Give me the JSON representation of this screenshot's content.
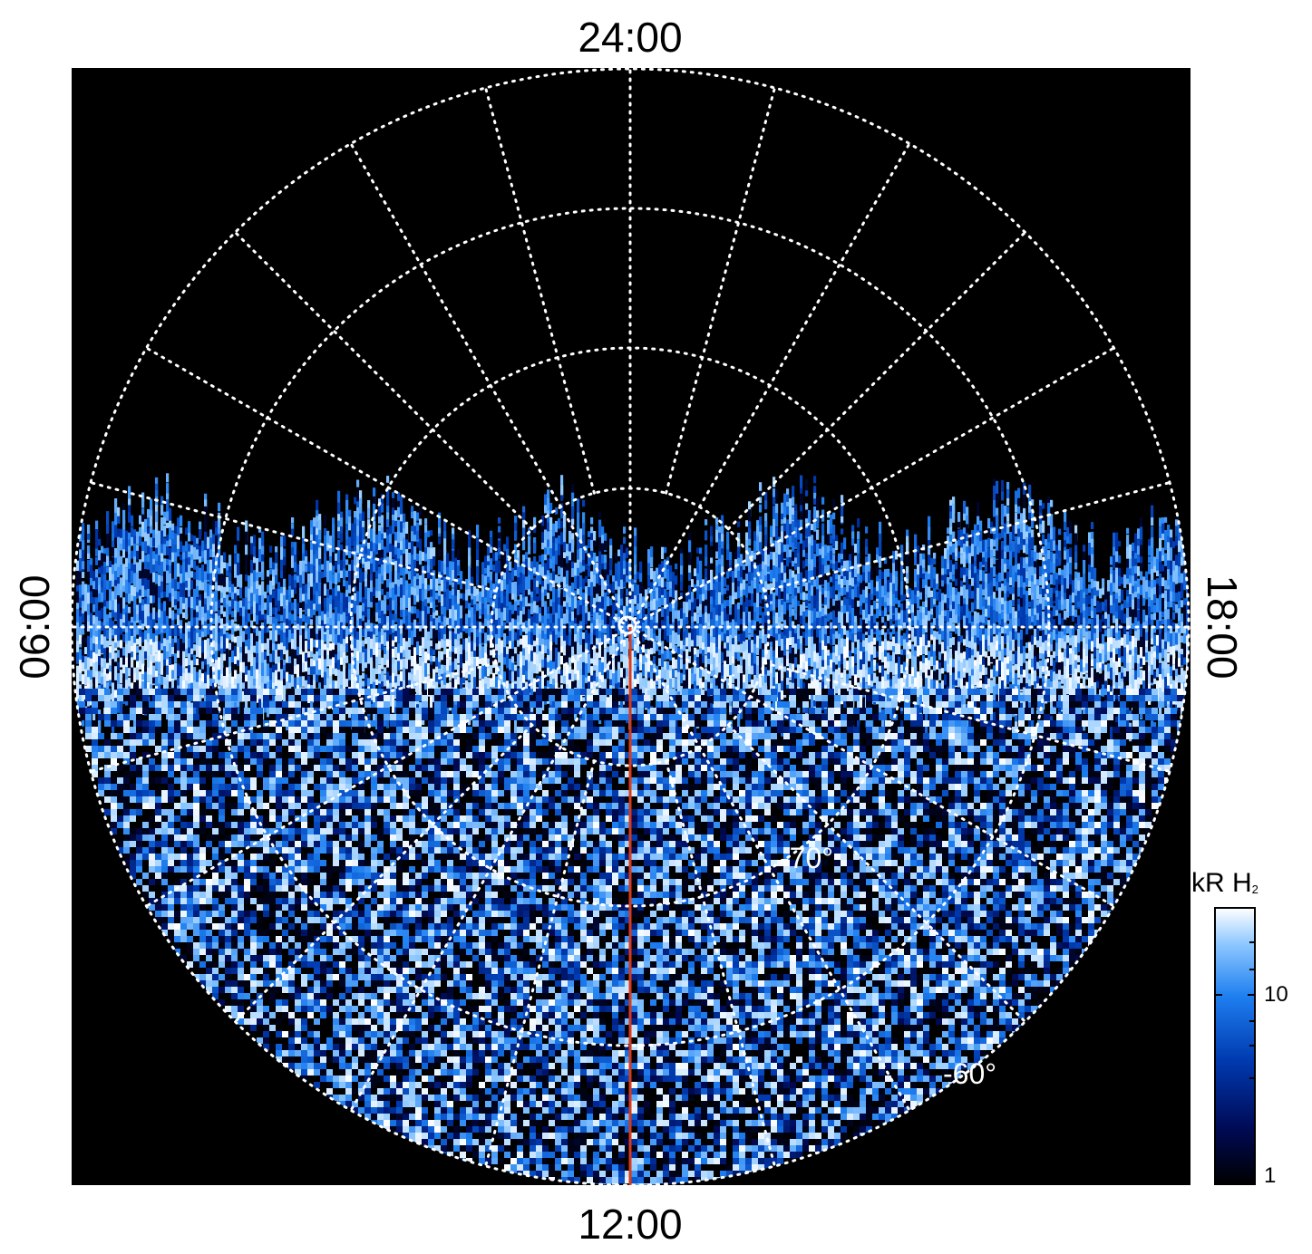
{
  "chart_data": {
    "type": "heatmap",
    "projection": "polar",
    "local_time_labels": {
      "top": "24:00",
      "bottom": "12:00",
      "left": "06:00",
      "right": "18:00"
    },
    "latitude_labels": [
      "-70°",
      "-60°"
    ],
    "colorbar": {
      "title": "kR H",
      "title_subscript": "2",
      "scale": "log",
      "ticks": [
        "10",
        "1"
      ],
      "range": [
        1,
        30
      ],
      "colormap": [
        "#000000",
        "#000a55",
        "#003ab0",
        "#1e7ff0",
        "#8ec8ff",
        "#ffffff"
      ]
    },
    "auroral_oval": {
      "description_free": true,
      "brightness_kr_peak": 30,
      "brightness_kr_noise_floor": 1
    },
    "meridian_line_color": "#d83a1a",
    "grid": true,
    "grid_color": "#ffffff",
    "background": "#000000"
  }
}
